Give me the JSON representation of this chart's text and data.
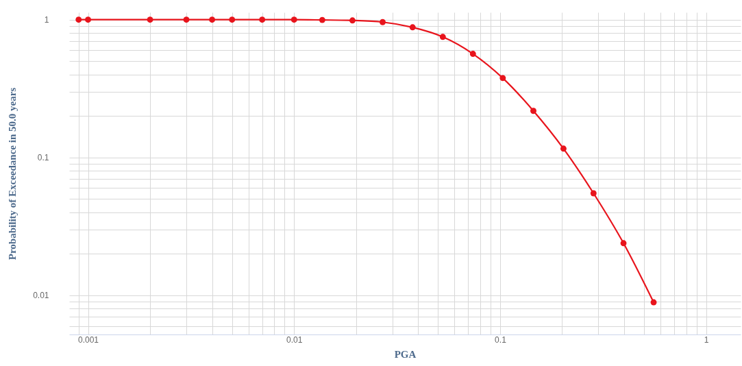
{
  "chart_data": {
    "type": "line",
    "xlabel": "PGA",
    "ylabel": "Probability of Exceedance in 50.0 years",
    "x": [
      0.0009,
      0.001,
      0.002,
      0.003,
      0.004,
      0.005,
      0.007,
      0.01,
      0.0137,
      0.0192,
      0.0269,
      0.0376,
      0.0527,
      0.0738,
      0.103,
      0.145,
      0.203,
      0.284,
      0.397,
      0.556
    ],
    "series": [
      {
        "color": "#e8141c",
        "values": [
          1,
          1,
          1,
          1,
          1,
          1,
          1,
          1,
          0.995,
          0.987,
          0.96,
          0.88,
          0.75,
          0.565,
          0.377,
          0.218,
          0.116,
          0.055,
          0.0239,
          0.0089
        ]
      }
    ],
    "log": "xy",
    "marker": "circle",
    "line_style": "solid",
    "grid": true,
    "xlim": [
      0.00081,
      1.47
    ],
    "ylim": [
      0.0052,
      1.13
    ],
    "xticks": [
      {
        "value": 0.0009,
        "label": null
      },
      0.001,
      {
        "value": 0.002,
        "label": null
      },
      {
        "value": 0.003,
        "label": null
      },
      {
        "value": 0.004,
        "label": null
      },
      {
        "value": 0.005,
        "label": null
      },
      {
        "value": 0.006,
        "label": null
      },
      {
        "value": 0.007,
        "label": null
      },
      {
        "value": 0.008,
        "label": null
      },
      {
        "value": 0.009,
        "label": null
      },
      0.01,
      {
        "value": 0.02,
        "label": null
      },
      {
        "value": 0.03,
        "label": null
      },
      {
        "value": 0.04,
        "label": null
      },
      {
        "value": 0.05,
        "label": null
      },
      {
        "value": 0.06,
        "label": null
      },
      {
        "value": 0.07,
        "label": null
      },
      {
        "value": 0.08,
        "label": null
      },
      {
        "value": 0.09,
        "label": null
      },
      0.1,
      {
        "value": 0.2,
        "label": null
      },
      {
        "value": 0.3,
        "label": null
      },
      {
        "value": 0.4,
        "label": null
      },
      {
        "value": 0.5,
        "label": null
      },
      {
        "value": 0.6,
        "label": null
      },
      {
        "value": 0.7,
        "label": null
      },
      {
        "value": 0.8,
        "label": null
      },
      {
        "value": 0.9,
        "label": null
      },
      1
    ],
    "yticks": [
      {
        "value": 0.006,
        "label": null
      },
      {
        "value": 0.007,
        "label": null
      },
      {
        "value": 0.008,
        "label": null
      },
      {
        "value": 0.009,
        "label": null
      },
      0.01,
      {
        "value": 0.02,
        "label": null
      },
      {
        "value": 0.03,
        "label": null
      },
      {
        "value": 0.04,
        "label": null
      },
      {
        "value": 0.05,
        "label": null
      },
      {
        "value": 0.06,
        "label": null
      },
      {
        "value": 0.07,
        "label": null
      },
      {
        "value": 0.08,
        "label": null
      },
      {
        "value": 0.09,
        "label": null
      },
      0.1,
      {
        "value": 0.2,
        "label": null
      },
      {
        "value": 0.3,
        "label": null
      },
      {
        "value": 0.4,
        "label": null
      },
      {
        "value": 0.5,
        "label": null
      },
      {
        "value": 0.6,
        "label": null
      },
      {
        "value": 0.7,
        "label": null
      },
      {
        "value": 0.8,
        "label": null
      },
      {
        "value": 0.9,
        "label": null
      },
      1
    ]
  }
}
